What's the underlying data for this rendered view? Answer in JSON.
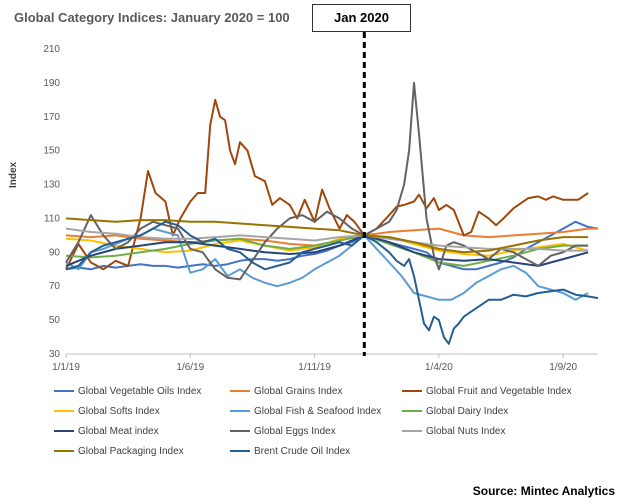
{
  "title": "Global Category Indices: January 2020 = 100",
  "annotation": "Jan 2020",
  "source": "Source: Mintec Analytics",
  "chart_data": {
    "type": "line",
    "title": "Global Category Indices: January 2020 = 100",
    "ylabel": "Index",
    "xlabel": "",
    "ylim": [
      30,
      210
    ],
    "yticks": [
      30,
      50,
      70,
      90,
      110,
      130,
      150,
      170,
      190,
      210
    ],
    "xticks": [
      {
        "label": "1/1/19",
        "x": 0
      },
      {
        "label": "1/6/19",
        "x": 5
      },
      {
        "label": "1/11/19",
        "x": 10
      },
      {
        "label": "1/4/20",
        "x": 15
      },
      {
        "label": "1/9/20",
        "x": 20
      }
    ],
    "xlim": [
      0,
      21.4
    ],
    "vline": {
      "x": 12,
      "label": "Jan 2020"
    },
    "series": [
      {
        "name": "Global Vegetable Oils Index",
        "color": "#4472C4",
        "x": [
          0,
          0.5,
          1,
          1.5,
          2,
          2.5,
          3,
          3.5,
          4,
          4.5,
          5,
          5.5,
          6,
          6.5,
          7,
          7.5,
          8,
          8.5,
          9,
          9.5,
          10,
          10.5,
          11,
          11.5,
          12,
          12.5,
          13,
          13.5,
          14,
          14.5,
          15,
          15.5,
          16,
          16.5,
          17,
          17.5,
          18,
          18.5,
          19,
          19.5,
          20,
          20.5,
          21,
          21.4
        ],
        "y": [
          80,
          81,
          80,
          82,
          81,
          82,
          83,
          82,
          82,
          81,
          82,
          83,
          82,
          83,
          85,
          86,
          86,
          85,
          86,
          88,
          89,
          91,
          94,
          96,
          100,
          98,
          96,
          94,
          92,
          90,
          84,
          82,
          80,
          80,
          82,
          84,
          87,
          92,
          96,
          100,
          104,
          108,
          105,
          104
        ]
      },
      {
        "name": "Global Grains Index",
        "color": "#ED7D31",
        "x": [
          0,
          1,
          2,
          3,
          4,
          5,
          6,
          7,
          8,
          9,
          10,
          11,
          12,
          13,
          14,
          15,
          16,
          17,
          18,
          19,
          20,
          21,
          21.4
        ],
        "y": [
          100,
          99,
          100,
          98,
          97,
          96,
          97,
          98,
          97,
          95,
          94,
          97,
          100,
          102,
          103,
          104,
          100,
          99,
          100,
          101,
          102,
          104,
          104
        ]
      },
      {
        "name": "Global Fruit and Vegetable Index",
        "color": "#9E480E",
        "x": [
          0,
          0.5,
          1,
          1.5,
          2,
          2.5,
          3,
          3.3,
          3.6,
          4,
          4.3,
          4.6,
          5,
          5.3,
          5.6,
          5.8,
          6,
          6.2,
          6.4,
          6.6,
          6.8,
          7,
          7.3,
          7.6,
          8,
          8.3,
          8.6,
          9,
          9.3,
          9.6,
          10,
          10.3,
          10.6,
          11,
          11.3,
          11.6,
          12,
          12.5,
          13,
          13.3,
          13.6,
          14,
          14.2,
          14.5,
          14.8,
          15,
          15.3,
          15.6,
          16,
          16.3,
          16.6,
          17,
          17.3,
          17.6,
          18,
          18.3,
          18.6,
          19,
          19.3,
          19.6,
          20,
          20.3,
          20.6,
          21
        ],
        "y": [
          80,
          95,
          84,
          80,
          85,
          82,
          110,
          138,
          125,
          120,
          100,
          110,
          120,
          125,
          125,
          165,
          180,
          170,
          168,
          150,
          142,
          155,
          150,
          135,
          132,
          118,
          122,
          118,
          110,
          121,
          108,
          127,
          116,
          104,
          112,
          108,
          100,
          104,
          112,
          117,
          118,
          120,
          124,
          116,
          122,
          115,
          118,
          115,
          100,
          102,
          114,
          110,
          106,
          110,
          116,
          119,
          122,
          123,
          121,
          123,
          121,
          121,
          121,
          125
        ]
      },
      {
        "name": "Global Softs Index",
        "color": "#FFC000",
        "x": [
          0,
          1,
          2,
          3,
          4,
          5,
          6,
          7,
          8,
          9,
          10,
          11,
          12,
          13,
          14,
          15,
          16,
          17,
          18,
          19,
          20,
          20.5,
          21
        ],
        "y": [
          98,
          97,
          94,
          92,
          90,
          91,
          95,
          97,
          94,
          91,
          93,
          98,
          100,
          99,
          95,
          91,
          89,
          88,
          91,
          93,
          95,
          93,
          91
        ]
      },
      {
        "name": "Global Fish & Seafood Index",
        "color": "#5B9BD5",
        "x": [
          0,
          0.5,
          1,
          1.5,
          2,
          2.5,
          3,
          3.5,
          4,
          4.5,
          5,
          5.5,
          6,
          6.5,
          7,
          7.5,
          8,
          8.5,
          9,
          9.5,
          10,
          10.5,
          11,
          11.5,
          12,
          12.5,
          13,
          13.5,
          14,
          14.5,
          15,
          15.5,
          16,
          16.5,
          17,
          17.5,
          18,
          18.5,
          19,
          19.5,
          20,
          20.5,
          21
        ],
        "y": [
          84,
          80,
          90,
          92,
          95,
          98,
          100,
          104,
          102,
          100,
          78,
          80,
          86,
          76,
          80,
          75,
          72,
          70,
          72,
          75,
          80,
          84,
          88,
          94,
          100,
          92,
          84,
          76,
          66,
          64,
          62,
          62,
          66,
          72,
          76,
          80,
          82,
          78,
          70,
          68,
          66,
          62,
          66
        ]
      },
      {
        "name": "Global Dairy Index",
        "color": "#70AD47",
        "x": [
          0,
          1,
          2,
          3,
          4,
          5,
          6,
          7,
          8,
          9,
          10,
          11,
          12,
          13,
          14,
          15,
          16,
          17,
          18,
          19,
          20,
          21
        ],
        "y": [
          88,
          87,
          88,
          90,
          92,
          95,
          97,
          98,
          94,
          92,
          94,
          97,
          100,
          95,
          90,
          84,
          82,
          85,
          88,
          92,
          94,
          94
        ]
      },
      {
        "name": "Global Meat index",
        "color": "#264478",
        "x": [
          0,
          1,
          2,
          3,
          4,
          5,
          6,
          7,
          8,
          9,
          10,
          11,
          12,
          13,
          14,
          15,
          16,
          17,
          18,
          19,
          20,
          21
        ],
        "y": [
          82,
          88,
          92,
          94,
          96,
          96,
          94,
          92,
          90,
          89,
          90,
          94,
          100,
          96,
          90,
          86,
          85,
          86,
          84,
          82,
          86,
          90
        ]
      },
      {
        "name": "Global Eggs Index",
        "color": "#636363",
        "x": [
          0,
          0.5,
          1,
          1.5,
          2,
          2.5,
          3,
          3.5,
          4,
          4.5,
          5,
          5.5,
          6,
          6.5,
          7,
          7.5,
          8,
          8.5,
          9,
          9.5,
          10,
          10.5,
          11,
          11.5,
          12,
          12.5,
          13,
          13.3,
          13.6,
          13.8,
          14,
          14.2,
          14.5,
          14.8,
          15,
          15.3,
          15.6,
          16,
          16.5,
          17,
          17.5,
          18,
          18.5,
          19,
          19.5,
          20,
          20.5,
          21
        ],
        "y": [
          84,
          96,
          112,
          100,
          92,
          96,
          104,
          108,
          106,
          104,
          92,
          90,
          80,
          75,
          74,
          85,
          96,
          104,
          110,
          112,
          108,
          114,
          110,
          104,
          100,
          104,
          108,
          115,
          130,
          150,
          190,
          160,
          110,
          88,
          80,
          94,
          96,
          94,
          90,
          86,
          92,
          90,
          86,
          82,
          88,
          90,
          94,
          94
        ]
      },
      {
        "name": "Global Nuts Index",
        "color": "#A5A5A5",
        "x": [
          0,
          1,
          2,
          3,
          4,
          5,
          6,
          7,
          8,
          9,
          10,
          11,
          12,
          13,
          14,
          15,
          16,
          17,
          18,
          19,
          20,
          21
        ],
        "y": [
          104,
          102,
          101,
          99,
          98,
          98,
          99,
          100,
          99,
          98,
          97,
          99,
          100,
          98,
          96,
          94,
          93,
          92,
          92,
          92,
          91,
          91
        ]
      },
      {
        "name": "Global Packaging Index",
        "color": "#997300",
        "x": [
          0,
          1,
          2,
          3,
          4,
          5,
          6,
          7,
          8,
          9,
          10,
          11,
          12,
          13,
          14,
          15,
          16,
          17,
          18,
          19,
          20,
          21
        ],
        "y": [
          110,
          109,
          108,
          109,
          109,
          108,
          108,
          107,
          106,
          105,
          104,
          103,
          100,
          99,
          96,
          92,
          90,
          91,
          94,
          97,
          99,
          99
        ]
      },
      {
        "name": "Brent Crude Oil Index",
        "color": "#255E91",
        "x": [
          0,
          0.5,
          1,
          1.5,
          2,
          2.5,
          3,
          3.5,
          4,
          4.5,
          5,
          5.5,
          6,
          6.5,
          7,
          7.5,
          8,
          8.5,
          9,
          9.5,
          10,
          10.5,
          11,
          11.5,
          12,
          12.5,
          13,
          13.3,
          13.6,
          13.8,
          14,
          14.2,
          14.4,
          14.6,
          14.8,
          15,
          15.2,
          15.4,
          15.6,
          15.8,
          16,
          16.3,
          16.6,
          17,
          17.5,
          18,
          18.5,
          19,
          19.5,
          20,
          20.5,
          21,
          21.4
        ],
        "y": [
          80,
          82,
          90,
          94,
          96,
          98,
          100,
          104,
          108,
          106,
          100,
          96,
          98,
          92,
          90,
          84,
          80,
          82,
          84,
          90,
          92,
          94,
          96,
          94,
          100,
          96,
          90,
          85,
          82,
          86,
          76,
          62,
          48,
          44,
          52,
          50,
          40,
          36,
          45,
          48,
          52,
          55,
          58,
          62,
          62,
          65,
          64,
          66,
          67,
          68,
          65,
          64,
          63
        ]
      }
    ]
  },
  "legend": [
    {
      "label": "Global Vegetable Oils Index",
      "color": "#4472C4"
    },
    {
      "label": "Global Grains Index",
      "color": "#ED7D31"
    },
    {
      "label": "Global Fruit and Vegetable Index",
      "color": "#9E480E"
    },
    {
      "label": "Global Softs Index",
      "color": "#FFC000"
    },
    {
      "label": "Global Fish & Seafood Index",
      "color": "#5B9BD5"
    },
    {
      "label": "Global Dairy Index",
      "color": "#70AD47"
    },
    {
      "label": "Global Meat index",
      "color": "#264478"
    },
    {
      "label": "Global Eggs Index",
      "color": "#636363"
    },
    {
      "label": "Global Nuts Index",
      "color": "#A5A5A5"
    },
    {
      "label": "Global Packaging Index",
      "color": "#997300"
    },
    {
      "label": "Brent Crude Oil Index",
      "color": "#255E91"
    }
  ]
}
